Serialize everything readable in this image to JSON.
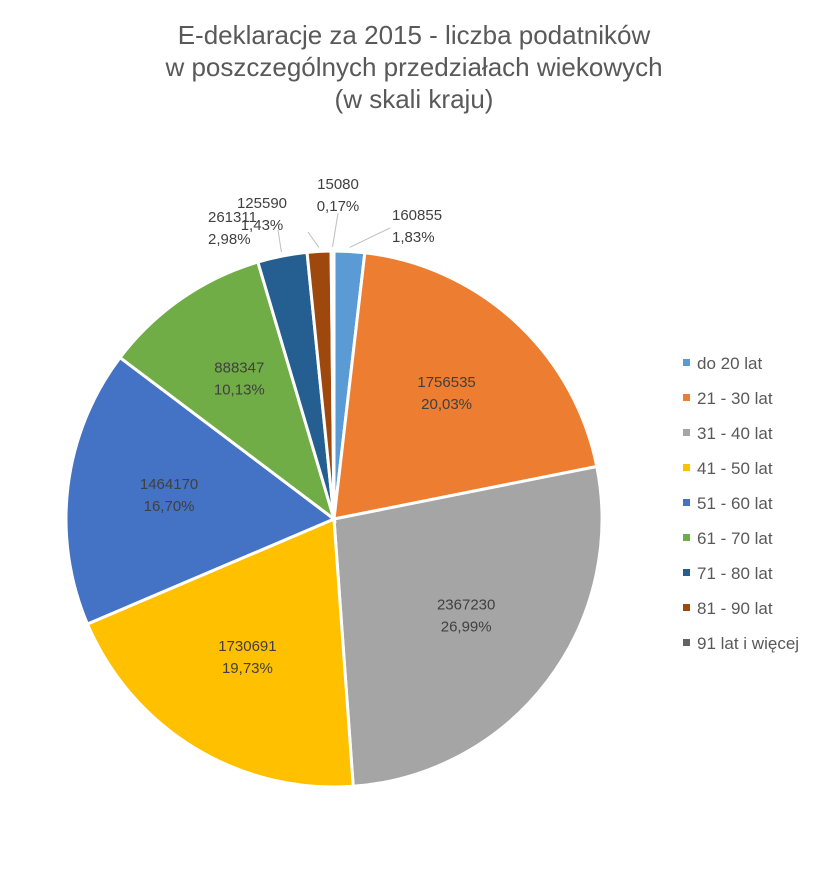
{
  "chart_data": {
    "type": "pie",
    "title_lines": [
      "E-deklaracje za 2015 - liczba podatników",
      "w poszczególnych  przedziałach wiekowych",
      "(w skali kraju)"
    ],
    "legend_position": "right",
    "slices": [
      {
        "label": "do 20 lat",
        "value": 160855,
        "value_text": "160855",
        "percent_text": "1,83%",
        "color": "#5B9BD5"
      },
      {
        "label": "21 - 30 lat",
        "value": 1756535,
        "value_text": "1756535",
        "percent_text": "20,03%",
        "color": "#ED7D31"
      },
      {
        "label": "31 - 40 lat",
        "value": 2367230,
        "value_text": "2367230",
        "percent_text": "26,99%",
        "color": "#A5A5A5"
      },
      {
        "label": "41 - 50 lat",
        "value": 1730691,
        "value_text": "1730691",
        "percent_text": "19,73%",
        "color": "#FFC000"
      },
      {
        "label": "51 - 60 lat",
        "value": 1464170,
        "value_text": "1464170",
        "percent_text": "16,70%",
        "color": "#4472C4"
      },
      {
        "label": "61 - 70 lat",
        "value": 888347,
        "value_text": "888347",
        "percent_text": "10,13%",
        "color": "#70AD47"
      },
      {
        "label": "71 - 80 lat",
        "value": 261311,
        "value_text": "261311",
        "percent_text": "2,98%",
        "color": "#255E91"
      },
      {
        "label": "81 - 90 lat",
        "value": 125590,
        "value_text": "125590",
        "percent_text": "1,43%",
        "color": "#9E480E"
      },
      {
        "label": "91 lat i więcej",
        "value": 15080,
        "value_text": "15080",
        "percent_text": "0,17%",
        "color": "#636363"
      }
    ]
  }
}
